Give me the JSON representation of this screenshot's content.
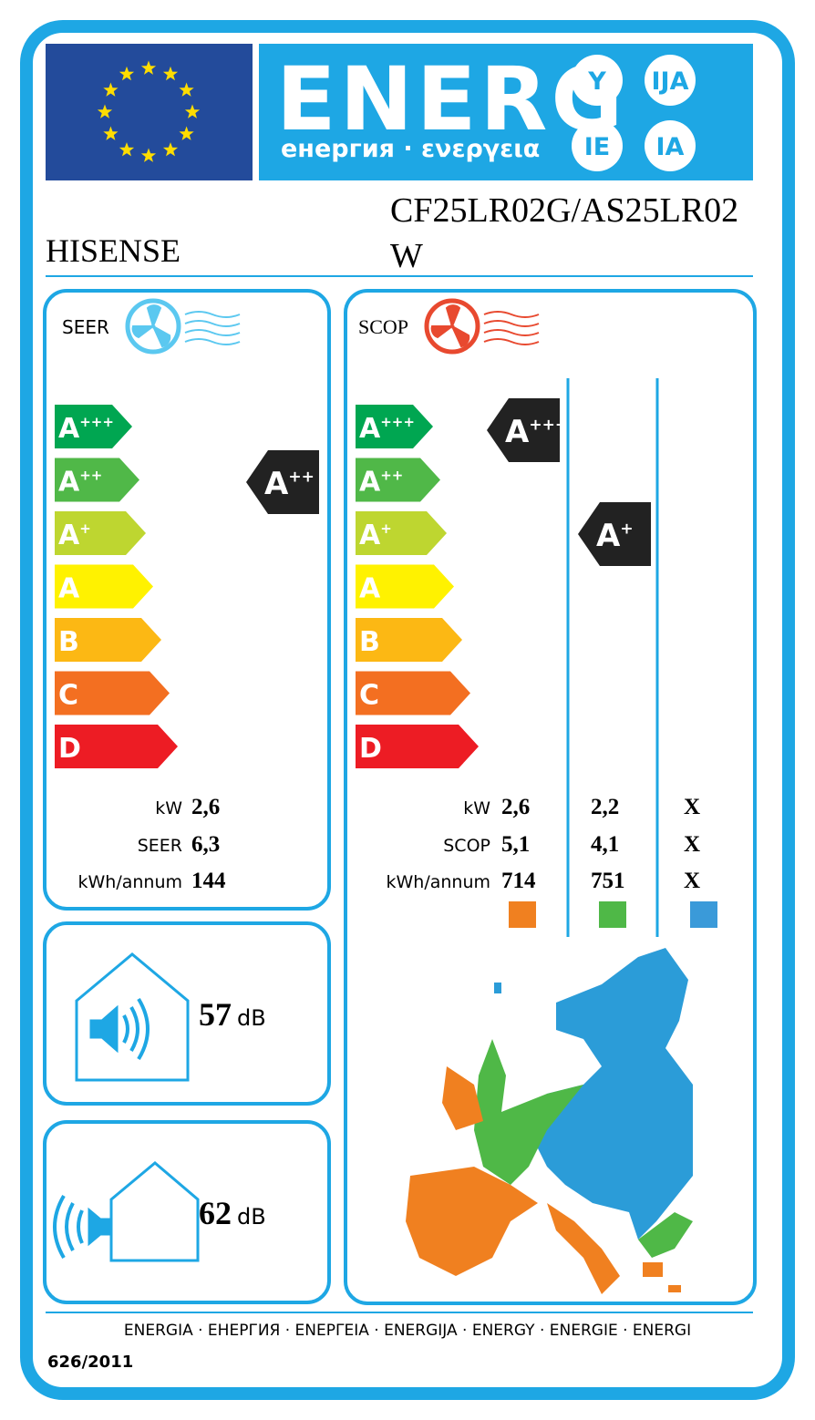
{
  "header": {
    "energy": "ENERG",
    "subtitle": "енергия · ενεργεια",
    "suffixes": [
      "Y",
      "IJA",
      "IE",
      "IA"
    ]
  },
  "supplier": "HISENSE",
  "model": "CF25LR02G/AS25LR02W",
  "classes": [
    {
      "letter": "A",
      "sup": "+++"
    },
    {
      "letter": "A",
      "sup": "++"
    },
    {
      "letter": "A",
      "sup": "+"
    },
    {
      "letter": "A"
    },
    {
      "letter": "B"
    },
    {
      "letter": "C"
    },
    {
      "letter": "D"
    }
  ],
  "cooling": {
    "label": "SEER",
    "rating": {
      "letter": "A",
      "sup": "++"
    },
    "rows": [
      {
        "label": "kW",
        "value": "2,6"
      },
      {
        "label": "SEER",
        "value": "6,3"
      },
      {
        "label": "kWh/annum",
        "value": "144"
      }
    ]
  },
  "heating": {
    "label": "SCOP",
    "ratings": [
      {
        "letter": "A",
        "sup": "+++"
      },
      {
        "letter": "A",
        "sup": "+"
      }
    ],
    "rows": [
      {
        "label": "kW",
        "values": [
          "2,6",
          "2,2",
          "X"
        ]
      },
      {
        "label": "SCOP",
        "values": [
          "5,1",
          "4,1",
          "X"
        ]
      },
      {
        "label": "kWh/annum",
        "values": [
          "714",
          "751",
          "X"
        ]
      }
    ]
  },
  "noise": {
    "indoor": {
      "value": "57",
      "unit": "dB"
    },
    "outdoor": {
      "value": "62",
      "unit": "dB"
    }
  },
  "footer": {
    "languages": "ENERGIA · ЕНЕРГИЯ · ΕΝΕΡΓΕΙΑ · ENERGIJA · ENERGY · ENERGIE · ENERGI",
    "regulation": "626/2011"
  }
}
